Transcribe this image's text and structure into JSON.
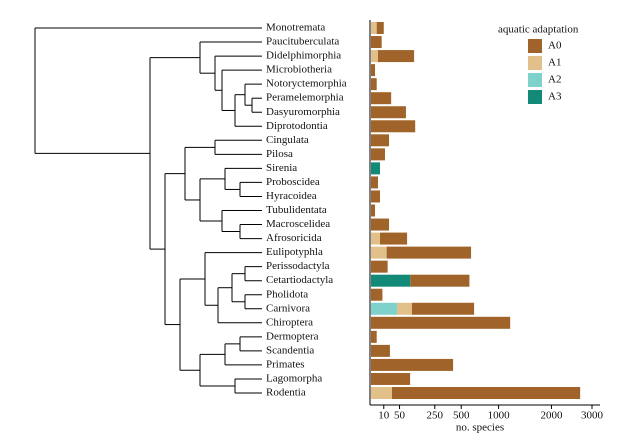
{
  "chart_data": {
    "type": "bar",
    "orientation": "horizontal",
    "scale": "sqrt",
    "categories": [
      "Monotremata",
      "Paucituberculata",
      "Didelphimorphia",
      "Microbiotheria",
      "Notoryctemorphia",
      "Peramelemorphia",
      "Dasyuromorphia",
      "Diprotodontia",
      "Cingulata",
      "Pilosa",
      "Sirenia",
      "Proboscidea",
      "Hyracoidea",
      "Tubulidentata",
      "Macroscelidea",
      "Afrosoricida",
      "Eulipotyphla",
      "Perissodactyla",
      "Cetartiodactyla",
      "Pholidota",
      "Carnivora",
      "Chiroptera",
      "Dermoptera",
      "Scandentia",
      "Primates",
      "Lagomorpha",
      "Rodentia"
    ],
    "series": [
      {
        "name": "A0",
        "color": "#a0642a",
        "values": [
          8,
          7,
          111,
          1,
          2,
          25,
          75,
          120,
          20,
          12,
          0,
          3,
          5,
          1,
          20,
          75,
          600,
          17,
          500,
          8,
          550,
          1190,
          2,
          22,
          414,
          94,
          2660
        ]
      },
      {
        "name": "A1",
        "color": "#e2c08a",
        "values": [
          2,
          0,
          3,
          0,
          0,
          0,
          0,
          0,
          0,
          0,
          0,
          0,
          0,
          0,
          0,
          5,
          15,
          0,
          0,
          0,
          61,
          0,
          0,
          0,
          0,
          0,
          27
        ]
      },
      {
        "name": "A2",
        "color": "#7fd1cb",
        "values": [
          0,
          0,
          0,
          0,
          0,
          0,
          0,
          0,
          0,
          0,
          0,
          0,
          0,
          0,
          0,
          0,
          0,
          0,
          0,
          0,
          42,
          0,
          0,
          0,
          0,
          0,
          0
        ]
      },
      {
        "name": "A3",
        "color": "#138a78",
        "values": [
          0,
          0,
          0,
          0,
          0,
          0,
          0,
          0,
          0,
          0,
          5,
          0,
          0,
          0,
          0,
          0,
          0,
          0,
          95,
          0,
          0,
          0,
          0,
          0,
          0,
          0,
          0
        ]
      }
    ],
    "xlim": [
      0,
      3000
    ],
    "xticks": [
      10,
      50,
      250,
      500,
      1000,
      2000,
      3000
    ],
    "xlabel": "no. species",
    "legend_title": "aquatic adaptation",
    "legend": "top-right"
  }
}
